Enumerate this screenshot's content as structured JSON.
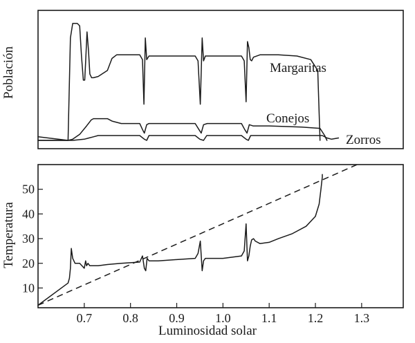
{
  "chart_data": [
    {
      "type": "line",
      "ylabel": "Población",
      "xlim": [
        0.6,
        1.39
      ],
      "series": [
        {
          "name": "Margaritas",
          "x": [
            0.6,
            0.665,
            0.67,
            0.675,
            0.685,
            0.69,
            0.694,
            0.698,
            0.701,
            0.703,
            0.706,
            0.709,
            0.712,
            0.716,
            0.72,
            0.73,
            0.75,
            0.76,
            0.77,
            0.78,
            0.82,
            0.826,
            0.829,
            0.832,
            0.835,
            0.84,
            0.86,
            0.88,
            0.9,
            0.94,
            0.946,
            0.951,
            0.955,
            0.958,
            0.96,
            0.962,
            0.966,
            0.98,
            1.0,
            1.04,
            1.046,
            1.05,
            1.053,
            1.056,
            1.059,
            1.062,
            1.066,
            1.08,
            1.12,
            1.16,
            1.19,
            1.205,
            1.21
          ],
          "y": [
            0,
            0,
            0.85,
            0.97,
            0.97,
            0.95,
            0.7,
            0.5,
            0.5,
            0.65,
            0.9,
            0.75,
            0.55,
            0.52,
            0.52,
            0.53,
            0.58,
            0.68,
            0.71,
            0.71,
            0.71,
            0.67,
            0.3,
            0.85,
            0.67,
            0.7,
            0.7,
            0.7,
            0.7,
            0.7,
            0.66,
            0.3,
            0.85,
            0.66,
            0.68,
            0.7,
            0.7,
            0.7,
            0.7,
            0.7,
            0.66,
            0.32,
            0.82,
            0.77,
            0.67,
            0.66,
            0.69,
            0.71,
            0.71,
            0.7,
            0.67,
            0.58,
            0
          ]
        },
        {
          "name": "Conejos",
          "x": [
            0.6,
            0.665,
            0.675,
            0.69,
            0.705,
            0.715,
            0.72,
            0.75,
            0.76,
            0.78,
            0.82,
            0.826,
            0.83,
            0.835,
            0.84,
            0.85,
            0.9,
            0.94,
            0.948,
            0.953,
            0.958,
            0.966,
            1.0,
            1.04,
            1.047,
            1.052,
            1.057,
            1.065,
            1.1,
            1.17,
            1.21,
            1.22,
            1.225
          ],
          "y": [
            0,
            0,
            0.01,
            0.05,
            0.12,
            0.17,
            0.18,
            0.18,
            0.16,
            0.14,
            0.14,
            0.09,
            0.06,
            0.13,
            0.14,
            0.14,
            0.14,
            0.14,
            0.09,
            0.06,
            0.13,
            0.14,
            0.14,
            0.14,
            0.09,
            0.06,
            0.13,
            0.12,
            0.12,
            0.11,
            0.1,
            0.04,
            0
          ]
        },
        {
          "name": "Zorros",
          "x": [
            0.6,
            0.665,
            0.675,
            0.7,
            0.72,
            0.73,
            0.75,
            0.8,
            0.82,
            0.83,
            0.835,
            0.84,
            0.9,
            0.94,
            0.95,
            0.958,
            0.965,
            1.0,
            1.04,
            1.05,
            1.055,
            1.06,
            1.1,
            1.17,
            1.215,
            1.225,
            1.235,
            1.25
          ],
          "y": [
            0.03,
            0,
            0,
            0.01,
            0.03,
            0.04,
            0.04,
            0.04,
            0.04,
            0.01,
            0.0,
            0.04,
            0.04,
            0.04,
            0.01,
            0.0,
            0.04,
            0.04,
            0.04,
            0.01,
            0.0,
            0.04,
            0.04,
            0.04,
            0.04,
            0.02,
            0.01,
            0.02
          ]
        }
      ]
    },
    {
      "type": "line",
      "xlabel": "Luminosidad solar",
      "ylabel": "Temperatura",
      "xlim": [
        0.6,
        1.39
      ],
      "ylim": [
        2,
        60
      ],
      "xticks": [
        0.7,
        0.8,
        0.9,
        1.0,
        1.1,
        1.2,
        1.3
      ],
      "xtick_labels": [
        "0.7",
        "0.8",
        "0.9",
        "1.0",
        "1.1",
        "1.2",
        "1.3"
      ],
      "yticks": [
        10,
        20,
        30,
        40,
        50
      ],
      "ytick_labels": [
        "10",
        "20",
        "30",
        "40",
        "50"
      ],
      "series": [
        {
          "style": "solid",
          "x": [
            0.6,
            0.665,
            0.668,
            0.67,
            0.672,
            0.675,
            0.68,
            0.69,
            0.7,
            0.703,
            0.705,
            0.708,
            0.712,
            0.72,
            0.73,
            0.75,
            0.78,
            0.82,
            0.826,
            0.83,
            0.833,
            0.836,
            0.84,
            0.86,
            0.9,
            0.94,
            0.946,
            0.951,
            0.955,
            0.958,
            0.962,
            0.97,
            1.0,
            1.04,
            1.046,
            1.05,
            1.053,
            1.056,
            1.059,
            1.062,
            1.066,
            1.07,
            1.08,
            1.1,
            1.12,
            1.15,
            1.18,
            1.2,
            1.208,
            1.212,
            1.215,
            1.215
          ],
          "y": [
            3,
            12,
            14,
            18,
            26,
            22,
            20,
            20,
            18,
            21,
            19,
            20,
            19,
            19,
            19,
            19.5,
            20,
            20.5,
            23,
            18,
            17,
            22,
            21,
            21,
            21.5,
            22,
            24,
            29,
            17,
            21,
            22,
            22,
            22,
            23,
            25,
            36,
            21,
            23,
            27,
            29.5,
            30,
            29,
            28,
            28.5,
            30,
            32,
            35,
            39,
            44,
            50,
            55,
            56
          ]
        },
        {
          "style": "dashed",
          "x": [
            0.6,
            1.29
          ],
          "y": [
            3,
            60
          ]
        }
      ]
    }
  ]
}
